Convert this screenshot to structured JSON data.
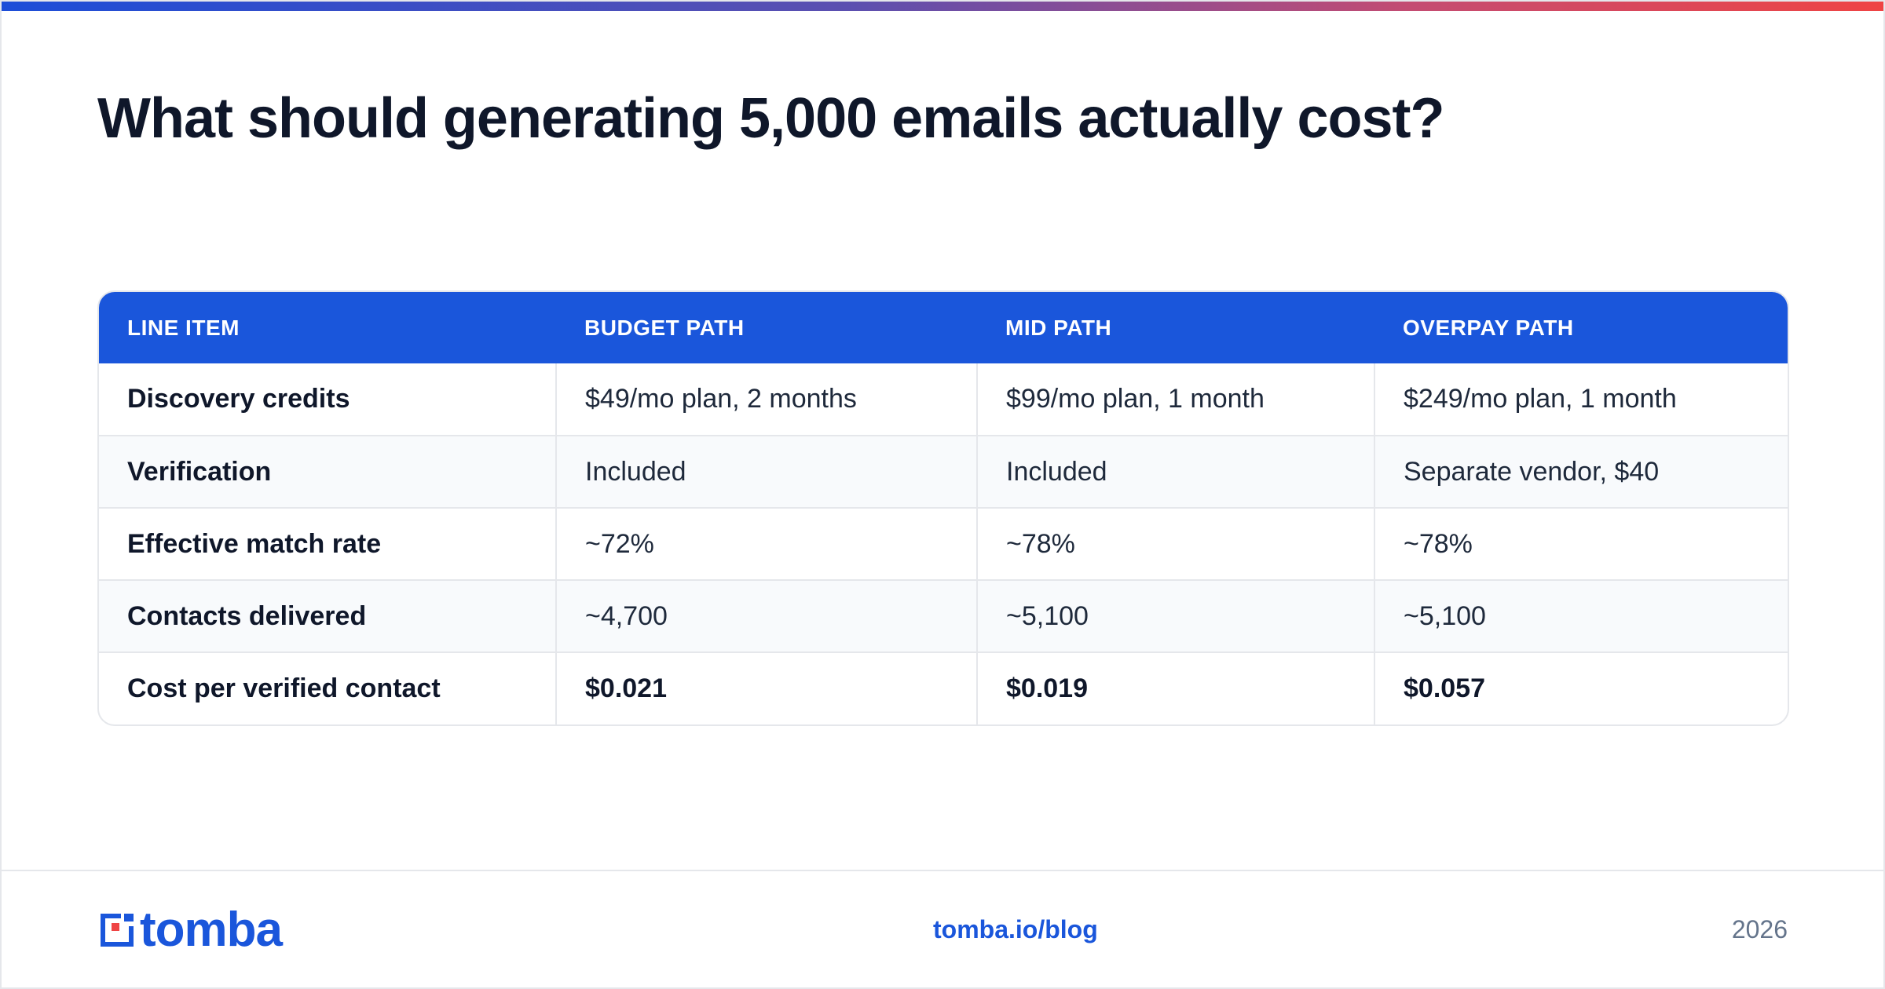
{
  "header": {
    "title": "What should generating 5,000 emails actually cost?"
  },
  "table": {
    "columns": [
      "LINE ITEM",
      "BUDGET PATH",
      "MID PATH",
      "OVERPAY PATH"
    ],
    "rows": [
      [
        "Discovery credits",
        "$49/mo plan, 2 months",
        "$99/mo plan, 1 month",
        "$249/mo plan, 1 month"
      ],
      [
        "Verification",
        "Included",
        "Included",
        "Separate vendor, $40"
      ],
      [
        "Effective match rate",
        "~72%",
        "~78%",
        "~78%"
      ],
      [
        "Contacts delivered",
        "~4,700",
        "~5,100",
        "~5,100"
      ],
      [
        "Cost per verified contact",
        "$0.021",
        "$0.019",
        "$0.057"
      ]
    ]
  },
  "footer": {
    "brand": "tomba",
    "link": "tomba.io/blog",
    "year": "2026"
  },
  "colors": {
    "accent": "#1a56db",
    "logo_red": "#ef4444",
    "title": "#0f172a"
  },
  "icons": {
    "logo_mark": "tomba-logo-icon"
  }
}
